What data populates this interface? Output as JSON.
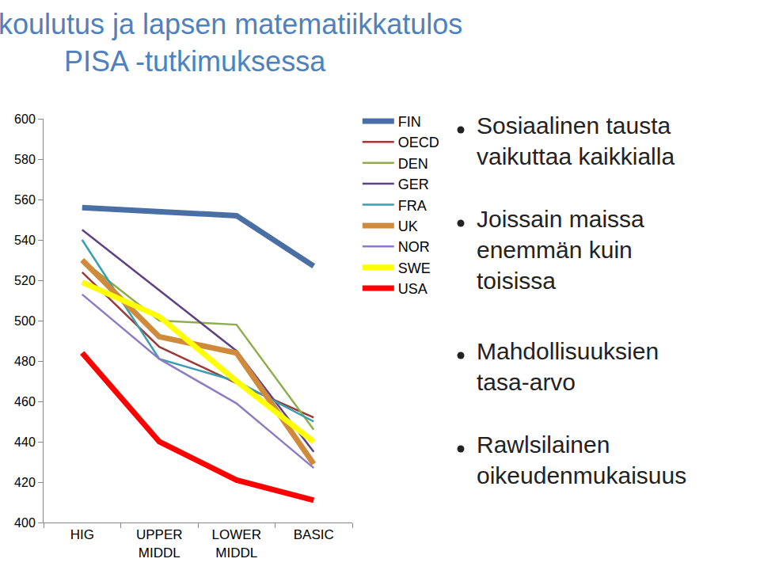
{
  "chart_data": {
    "type": "line",
    "title": "Äidin koulutus ja lapsen matematiikkatulos\nPISA -tutkimuksessa",
    "categories": [
      "HIG",
      "UPPER\nMIDDL",
      "LOWER\nMIDDL",
      "BASIC"
    ],
    "series": [
      {
        "name": "FIN",
        "color": "#4a6fa5",
        "line_style": "thick",
        "values": [
          556,
          554,
          552,
          527
        ]
      },
      {
        "name": "OECD",
        "color": "#9b3a36",
        "line_style": "solid",
        "values": [
          524,
          487,
          469,
          452
        ]
      },
      {
        "name": "DEN",
        "color": "#8fae4a",
        "line_style": "solid",
        "values": [
          530,
          500,
          498,
          446
        ]
      },
      {
        "name": "GER",
        "color": "#5e4282",
        "line_style": "solid",
        "values": [
          545,
          515,
          485,
          435
        ]
      },
      {
        "name": "FRA",
        "color": "#3b9db0",
        "line_style": "solid",
        "values": [
          540,
          481,
          470,
          450
        ]
      },
      {
        "name": "UK",
        "color": "#d08a3c",
        "line_style": "thick",
        "values": [
          530,
          492,
          484,
          429
        ]
      },
      {
        "name": "NOR",
        "color": "#8e7cc3",
        "line_style": "solid",
        "values": [
          513,
          481,
          459,
          427
        ]
      },
      {
        "name": "SWE",
        "color": "#ffff00",
        "line_style": "thick",
        "values": [
          519,
          502,
          470,
          440
        ]
      },
      {
        "name": "USA",
        "color": "#ff0000",
        "line_style": "thick",
        "values": [
          484,
          440,
          421,
          411
        ]
      }
    ],
    "ylim": [
      400,
      600
    ],
    "yticks": [
      400,
      420,
      440,
      460,
      480,
      500,
      520,
      540,
      560,
      580,
      600
    ],
    "grid": false,
    "legend": "right",
    "annotations": [
      "Sosiaalinen tausta\nvaikuttaa kaikkialla",
      "Joissain maissa\nenemmän kuin\ntoisissa",
      "Mahdollisuuksien\ntasa-arvo",
      "Rawlsilainen\noikeudenmukaisuus"
    ]
  }
}
